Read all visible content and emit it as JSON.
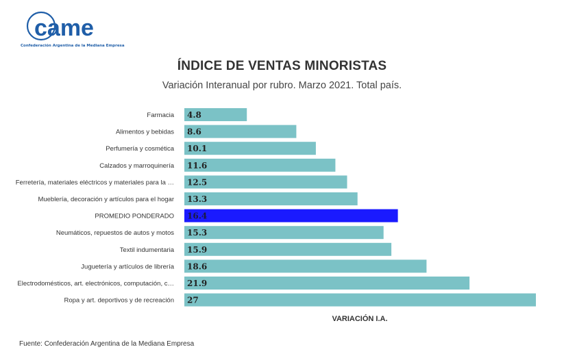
{
  "logo": {
    "text": "came",
    "caption": "Confederación Argentina de la Mediana Empresa",
    "color": "#1f5ea8"
  },
  "header": {
    "title": "ÍNDICE DE VENTAS MINORISTAS",
    "subtitle": "Variación Interanual por rubro. Marzo 2021. Total país."
  },
  "footer": {
    "source": "Fuente: Confederación Argentina de la Mediana Empresa"
  },
  "colors": {
    "bar": "#7bc2c6",
    "highlight": "#1a1aff"
  },
  "chart_data": {
    "type": "bar",
    "orientation": "horizontal",
    "categories": [
      "Farmacia",
      "Alimentos y bebidas",
      "Perfumería y cosmética",
      "Calzados y marroquinería",
      "Ferretería, materiales eléctricos y materiales para la …",
      "Mueblería, decoración y artículos para el hogar",
      "PROMEDIO PONDERADO",
      "Neumáticos, repuestos de autos y motos",
      "Textil indumentaria",
      "Juguetería y artículos de librería",
      "Electrodomésticos, art. electrónicos, computación, c…",
      "Ropa y art. deportivos y de recreación"
    ],
    "values": [
      4.8,
      8.6,
      10.1,
      11.6,
      12.5,
      13.3,
      16.4,
      15.3,
      15.9,
      18.6,
      21.9,
      27
    ],
    "value_labels": [
      "4.8",
      "8.6",
      "10.1",
      "11.6",
      "12.5",
      "13.3",
      "16.4",
      "15.3",
      "15.9",
      "18.6",
      "21.9",
      "27"
    ],
    "highlight_index": 6,
    "xlabel": "VARIACIÓN I.A.",
    "ylabel": "",
    "xlim": [
      0,
      27
    ],
    "grid": false,
    "legend": "none"
  }
}
